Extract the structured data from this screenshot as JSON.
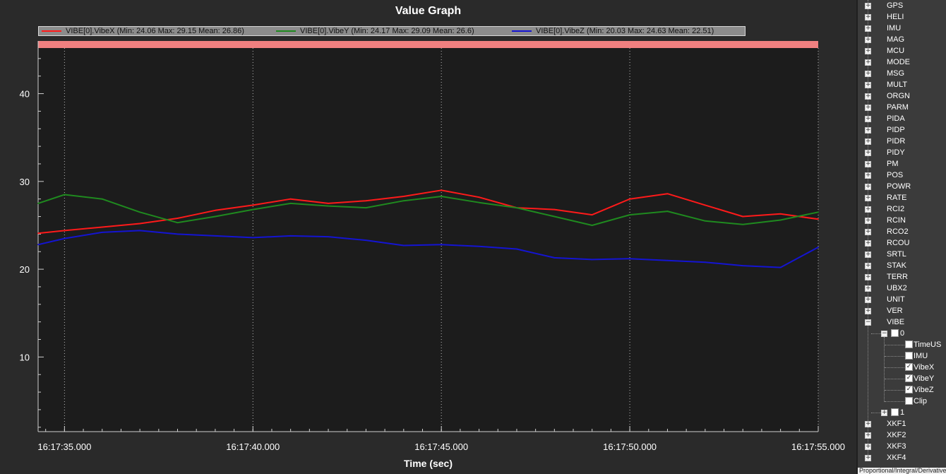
{
  "chart_data": {
    "type": "line",
    "title": "Value Graph",
    "xlabel": "Time (sec)",
    "ylabel": "",
    "xlim": [
      "16:17:34.300",
      "16:17:55.000"
    ],
    "ylim": [
      1.5,
      46
    ],
    "x_ticks": [
      "16:17:35.000",
      "16:17:40.000",
      "16:17:45.000",
      "16:17:50.000",
      "16:17:55.000"
    ],
    "y_ticks": [
      10,
      20,
      30,
      40
    ],
    "grid": "vertical dotted",
    "legend_position": "top",
    "series": [
      {
        "name": "VIBE[0].VibeX",
        "legend": "VIBE[0].VibeX  (Min: 24.06 Max: 29.15 Mean: 26.86)",
        "color": "#ff1a1a",
        "x": [
          "16:17:34.300",
          "16:17:35.000",
          "16:17:36.000",
          "16:17:37.000",
          "16:17:38.000",
          "16:17:39.000",
          "16:17:40.000",
          "16:17:41.000",
          "16:17:42.000",
          "16:17:43.000",
          "16:17:44.000",
          "16:17:45.000",
          "16:17:46.000",
          "16:17:47.000",
          "16:17:48.000",
          "16:17:49.000",
          "16:17:50.000",
          "16:17:51.000",
          "16:17:52.000",
          "16:17:53.000",
          "16:17:54.000",
          "16:17:55.000"
        ],
        "values": [
          24.1,
          24.4,
          24.8,
          25.2,
          25.8,
          26.7,
          27.3,
          28.0,
          27.5,
          27.8,
          28.3,
          29.0,
          28.2,
          27.0,
          26.8,
          26.2,
          28.0,
          28.6,
          27.3,
          26.0,
          26.3,
          25.7
        ]
      },
      {
        "name": "VIBE[0].VibeY",
        "legend": "VIBE[0].VibeY  (Min: 24.17 Max: 29.09 Mean: 26.6)",
        "color": "#1f8a1f",
        "x": [
          "16:17:34.300",
          "16:17:35.000",
          "16:17:36.000",
          "16:17:37.000",
          "16:17:38.000",
          "16:17:39.000",
          "16:17:40.000",
          "16:17:41.000",
          "16:17:42.000",
          "16:17:43.000",
          "16:17:44.000",
          "16:17:45.000",
          "16:17:46.000",
          "16:17:47.000",
          "16:17:48.000",
          "16:17:49.000",
          "16:17:50.000",
          "16:17:51.000",
          "16:17:52.000",
          "16:17:53.000",
          "16:17:54.000",
          "16:17:55.000"
        ],
        "values": [
          27.5,
          28.5,
          28.0,
          26.5,
          25.3,
          26.0,
          26.8,
          27.5,
          27.2,
          27.0,
          27.8,
          28.3,
          27.6,
          27.0,
          26.0,
          25.0,
          26.2,
          26.6,
          25.5,
          25.1,
          25.6,
          26.5
        ]
      },
      {
        "name": "VIBE[0].VibeZ",
        "legend": "VIBE[0].VibeZ  (Min: 20.03 Max: 24.63 Mean: 22.51)",
        "color": "#1414d2",
        "x": [
          "16:17:34.300",
          "16:17:35.000",
          "16:17:36.000",
          "16:17:37.000",
          "16:17:38.000",
          "16:17:39.000",
          "16:17:40.000",
          "16:17:41.000",
          "16:17:42.000",
          "16:17:43.000",
          "16:17:44.000",
          "16:17:45.000",
          "16:17:46.000",
          "16:17:47.000",
          "16:17:48.000",
          "16:17:49.000",
          "16:17:50.000",
          "16:17:51.000",
          "16:17:52.000",
          "16:17:53.000",
          "16:17:54.000",
          "16:17:55.000"
        ],
        "values": [
          22.8,
          23.5,
          24.2,
          24.4,
          24.0,
          23.8,
          23.6,
          23.8,
          23.7,
          23.3,
          22.7,
          22.8,
          22.6,
          22.3,
          21.3,
          21.1,
          21.2,
          21.0,
          20.8,
          20.4,
          20.2,
          22.5
        ]
      }
    ]
  },
  "tree": {
    "items": [
      {
        "label": "GPS",
        "expander": "+"
      },
      {
        "label": "HELI",
        "expander": "+"
      },
      {
        "label": "IMU",
        "expander": "+"
      },
      {
        "label": "MAG",
        "expander": "+"
      },
      {
        "label": "MCU",
        "expander": "+"
      },
      {
        "label": "MODE",
        "expander": "+"
      },
      {
        "label": "MSG",
        "expander": "+"
      },
      {
        "label": "MULT",
        "expander": "+"
      },
      {
        "label": "ORGN",
        "expander": "+"
      },
      {
        "label": "PARM",
        "expander": "+"
      },
      {
        "label": "PIDA",
        "expander": "+"
      },
      {
        "label": "PIDP",
        "expander": "+"
      },
      {
        "label": "PIDR",
        "expander": "+"
      },
      {
        "label": "PIDY",
        "expander": "+"
      },
      {
        "label": "PM",
        "expander": "+"
      },
      {
        "label": "POS",
        "expander": "+"
      },
      {
        "label": "POWR",
        "expander": "+"
      },
      {
        "label": "RATE",
        "expander": "+"
      },
      {
        "label": "RCI2",
        "expander": "+"
      },
      {
        "label": "RCIN",
        "expander": "+"
      },
      {
        "label": "RCO2",
        "expander": "+"
      },
      {
        "label": "RCOU",
        "expander": "+"
      },
      {
        "label": "SRTL",
        "expander": "+"
      },
      {
        "label": "STAK",
        "expander": "+"
      },
      {
        "label": "TERR",
        "expander": "+"
      },
      {
        "label": "UBX2",
        "expander": "+"
      },
      {
        "label": "UNIT",
        "expander": "+"
      },
      {
        "label": "VER",
        "expander": "+"
      },
      {
        "label": "VIBE",
        "expander": "−"
      }
    ],
    "vibe_children": [
      {
        "label": "0",
        "expander": "−",
        "checked": false,
        "fields": [
          {
            "label": "TimeUS",
            "checked": false
          },
          {
            "label": "IMU",
            "checked": false
          },
          {
            "label": "VibeX",
            "checked": true
          },
          {
            "label": "VibeY",
            "checked": true
          },
          {
            "label": "VibeZ",
            "checked": true
          },
          {
            "label": "Clip",
            "checked": false
          }
        ]
      },
      {
        "label": "1",
        "expander": "+",
        "checked": false,
        "fields": []
      }
    ],
    "after_items": [
      {
        "label": "XKF1",
        "expander": "+"
      },
      {
        "label": "XKF2",
        "expander": "+"
      },
      {
        "label": "XKF3",
        "expander": "+"
      },
      {
        "label": "XKF4",
        "expander": "+"
      }
    ],
    "footer_text": "Proportional/Integral/Derivative"
  }
}
